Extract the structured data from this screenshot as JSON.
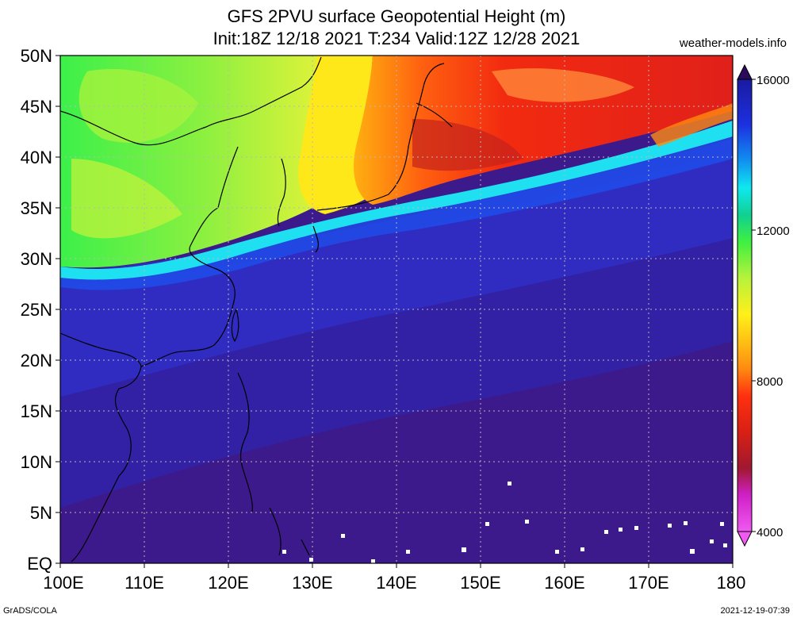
{
  "title_line1": "GFS 2PVU surface Geopotential Height (m)",
  "title_line2": "Init:18Z 12/18 2021 T:234 Valid:12Z 12/28 2021",
  "site": "weather-models.info",
  "footer_left": "GrADS/COLA",
  "footer_right": "2021-12-19-07:39",
  "y_ticks": [
    "50N",
    "45N",
    "40N",
    "35N",
    "30N",
    "25N",
    "20N",
    "15N",
    "10N",
    "5N",
    "EQ"
  ],
  "x_ticks": [
    "100E",
    "110E",
    "120E",
    "130E",
    "140E",
    "150E",
    "160E",
    "170E",
    "180"
  ],
  "colorbar_ticks": [
    "16000",
    "12000",
    "8000",
    "4000"
  ],
  "colors": {
    "background_low": "#3d1a8c",
    "blue": "#2e34d6",
    "cyan": "#1ee0f0",
    "green": "#3cf04a",
    "yellowgreen": "#b8f23c",
    "yellow": "#ffe81a",
    "orange": "#ff8a10",
    "red": "#f22a10",
    "darkred": "#c4221c",
    "magenta": "#e020e0"
  }
}
